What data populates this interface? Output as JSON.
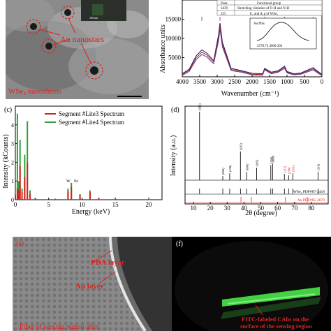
{
  "panel_a": {
    "label": "",
    "au_label": "Au nanostars",
    "wse_label": "WSe₂ nanosheets",
    "inset_scale": "100 nm"
  },
  "panel_b": {
    "ylabel": "Absorbance units",
    "xlabel": "Wavenumber (cm⁻¹)",
    "ytick_labels": [
      "5000",
      "10000",
      "15000"
    ],
    "xtick_labels": [
      "4000",
      "3500",
      "3000",
      "2500",
      "2000",
      "1500",
      "1000",
      "500",
      "0"
    ],
    "table_headers": [
      "Peak",
      "Functional group"
    ],
    "table_rows": [
      [
        "3439",
        "Stretching vibration of O-H and N-H"
      ],
      [
        "255",
        "E₂ and A₁g of WSe₂"
      ]
    ],
    "inset_label": "Au/NSs",
    "inset_values": "2578.72   4909.303"
  },
  "panel_c": {
    "label": "(c)",
    "ylabel": "Intensity (kCounts)",
    "xlabel": "Energy (keV)",
    "legend": [
      "Segment #Lite3 Spectrum",
      "Segment #Lite4 Spectrum"
    ],
    "ytick_labels": [
      "0",
      "1",
      "2",
      "3",
      "4"
    ],
    "xtick_labels": [
      "0",
      "5",
      "10",
      "15",
      "20"
    ],
    "peak_labels": [
      "W",
      "Se"
    ]
  },
  "panel_d": {
    "label": "(d)",
    "ylabel": "Intensity (a.u.)",
    "xlabel": "2θ (degree)",
    "xtick_labels": [
      "10",
      "20",
      "30",
      "40",
      "50",
      "60",
      "70",
      "80"
    ],
    "ref1": "WSe₂ PDF#87-2418",
    "ref2": "Au PDF#65-2870",
    "peak_tags": [
      "(002)",
      "(004)",
      "(100)",
      "(103)",
      "(006)",
      "(105)",
      "(110)",
      "(008)",
      "(112)",
      "(200)",
      "(201)",
      "(118)"
    ]
  },
  "panel_e": {
    "label": "(e)",
    "pda_label": "PDA layer",
    "au_label": "Au layer",
    "bottom_text": "Fiber of sensing region after"
  },
  "panel_f": {
    "label": "(f)",
    "caption_line1": "FITC-labeled CAbs on the",
    "caption_line2": "surface of the sensing region"
  },
  "colors": {
    "annotation_red": "#e02020",
    "eds_red": "#d62020",
    "eds_green": "#2e9e3a",
    "ftir_dark": "#1a1a6a",
    "ftir_red": "#b02020",
    "fluo_green": "#43d143"
  },
  "chart_data": [
    {
      "type": "line",
      "title": "",
      "xlabel": "Wavenumber (cm⁻¹)",
      "ylabel": "Absorbance units",
      "xlim": [
        4000,
        0
      ],
      "ylim": [
        0,
        20000
      ],
      "series": [
        {
          "x": [
            4000,
            3800,
            3600,
            3439,
            3300,
            3100,
            2960,
            2920,
            2850,
            2600,
            2300,
            2000,
            1700,
            1640,
            1450,
            1250,
            1070,
            1000,
            800,
            600,
            255,
            0
          ],
          "values": [
            800,
            2000,
            5500,
            7000,
            6200,
            4200,
            11000,
            14000,
            9000,
            2200,
            1600,
            900,
            800,
            2200,
            1200,
            1600,
            2800,
            1400,
            800,
            1000,
            2400,
            600
          ]
        },
        {
          "x": [
            4000,
            3800,
            3600,
            3439,
            3300,
            3100,
            2960,
            2920,
            2850,
            2600,
            2300,
            2000,
            1700,
            1640,
            1450,
            1250,
            1070,
            1000,
            800,
            600,
            255,
            0
          ],
          "values": [
            600,
            1700,
            5000,
            6400,
            5700,
            3800,
            10200,
            13200,
            8400,
            1900,
            1400,
            700,
            600,
            2000,
            1000,
            1400,
            2500,
            1200,
            650,
            850,
            2100,
            450
          ]
        },
        {
          "x": [
            4000,
            3800,
            3600,
            3439,
            3300,
            3100,
            2960,
            2920,
            2850,
            2600,
            2300,
            2000,
            1700,
            1640,
            1450,
            1250,
            1070,
            1000,
            800,
            600,
            255,
            0
          ],
          "values": [
            400,
            1400,
            4500,
            5800,
            5200,
            3400,
            9400,
            12400,
            7800,
            1600,
            1200,
            500,
            400,
            1800,
            800,
            1200,
            2200,
            1000,
            500,
            700,
            1800,
            300
          ]
        }
      ]
    },
    {
      "type": "line",
      "title": "",
      "xlabel": "Energy (keV)",
      "ylabel": "Intensity (kCounts)",
      "xlim": [
        0,
        22
      ],
      "ylim": [
        0,
        5
      ],
      "series": [
        {
          "name": "Segment #Lite3 Spectrum",
          "x": [
            0,
            0.3,
            0.5,
            0.7,
            1.0,
            1.4,
            1.8,
            2.2,
            3,
            6,
            7.9,
            8.4,
            9.7,
            11.2,
            12.5,
            15,
            20,
            22
          ],
          "values": [
            0.2,
            0.6,
            0.5,
            1.8,
            0.4,
            1.2,
            2.0,
            0.3,
            0.1,
            0.05,
            0.45,
            0.7,
            0.25,
            0.4,
            0.1,
            0.05,
            0.02,
            0.02
          ]
        },
        {
          "name": "Segment #Lite4 Spectrum",
          "x": [
            0,
            0.3,
            0.5,
            0.7,
            1.0,
            1.4,
            1.8,
            2.2,
            3,
            6,
            7.9,
            8.4,
            9.7,
            11.2,
            12.5,
            15,
            20,
            22
          ],
          "values": [
            0.3,
            4.6,
            1.0,
            3.2,
            0.6,
            2.4,
            4.2,
            0.5,
            0.1,
            0.05,
            0.6,
            0.9,
            0.3,
            0.5,
            0.1,
            0.05,
            0.02,
            0.02
          ]
        }
      ]
    },
    {
      "type": "line",
      "title": "",
      "xlabel": "2θ (degree)",
      "ylabel": "Intensity (a.u.)",
      "xlim": [
        5,
        90
      ],
      "series": [
        {
          "x": [
            13.6,
            27.4,
            31.5,
            37.9,
            41.6,
            47.5,
            55.9,
            57.0,
            64.0,
            66.5,
            69.0,
            84.0
          ],
          "values": [
            100,
            6,
            10,
            42,
            12,
            18,
            22,
            24,
            9,
            7,
            10,
            12
          ]
        }
      ]
    }
  ]
}
